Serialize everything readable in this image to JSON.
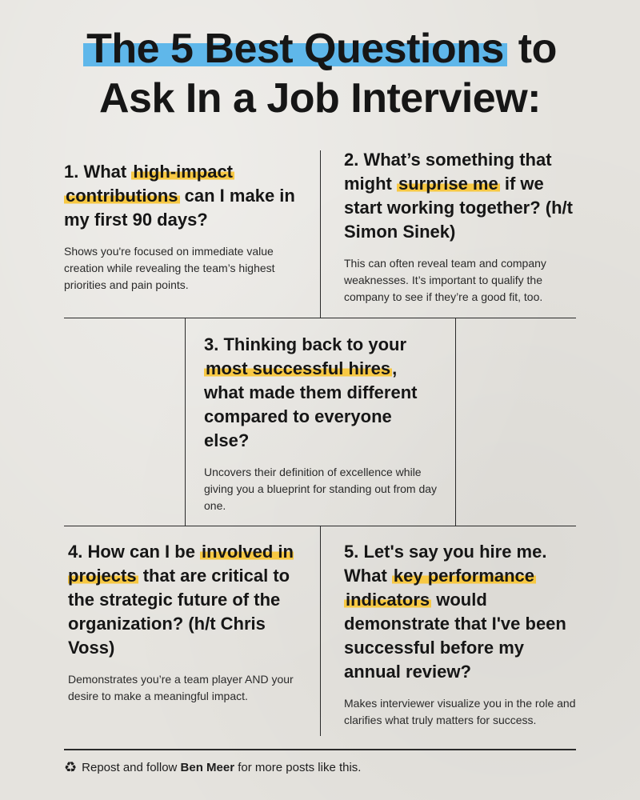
{
  "title": {
    "line1_highlight": "The 5 Best Questions",
    "line1_rest": "to",
    "line2": "Ask In a Job Interview:"
  },
  "questions": [
    {
      "pre": "1. What ",
      "highlight1": "high-impact",
      "highlight2": "contributions",
      "post": " can I make in my first 90 days?",
      "desc": "Shows you're focused on immediate value creation while revealing the team’s highest priorities and pain points."
    },
    {
      "pre": "2. What’s something that might ",
      "highlight": "surprise me",
      "post": " if we start working together? (h/t Simon Sinek)",
      "desc": "This can often reveal team and company weaknesses. It’s important to qualify the company to see if they’re a good fit, too."
    },
    {
      "pre": "3. Thinking back to your ",
      "highlight": "most successful hires",
      "post": ", what made them different compared to everyone else?",
      "desc": "Uncovers their definition of excellence while giving you a blueprint for standing out from day one."
    },
    {
      "pre": "4. How can I be ",
      "highlight": "involved in projects",
      "post": " that are critical to the strategic future of the organization? (h/t Chris Voss)",
      "desc": "Demonstrates you’re a team player AND your desire to make a meaningful impact."
    },
    {
      "pre": "5. Let's say you hire me. What ",
      "highlight1": "key performance",
      "highlight2": "indicators",
      "post": " would demonstrate that I've been successful before my annual review?",
      "desc": "Makes interviewer visualize you in the role and clarifies what truly matters for success."
    }
  ],
  "footer": {
    "icon": "recycle-icon",
    "icon_glyph": "♻",
    "pre": "Repost and follow ",
    "name": "Ben Meer",
    "post": " for more posts like this."
  },
  "colors": {
    "title_highlight": "#5fb7ea",
    "text_highlight": "#f7c843",
    "background": "#e5e3de"
  }
}
